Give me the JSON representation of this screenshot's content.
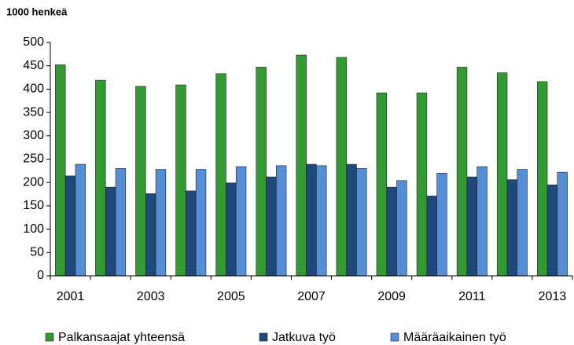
{
  "chart_data": {
    "type": "bar",
    "title": "1000 henkeä",
    "categories": [
      "2001",
      null,
      "2003",
      null,
      "2005",
      null,
      "2007",
      null,
      "2009",
      null,
      "2011",
      null,
      "2013"
    ],
    "series": [
      {
        "name": "Palkansaajat yhteensä",
        "color": "#339933",
        "values": [
          452,
          419,
          406,
          409,
          433,
          447,
          473,
          468,
          392,
          392,
          447,
          435,
          416
        ]
      },
      {
        "name": "Jatkuva työ",
        "color": "#1f497d",
        "values": [
          214,
          190,
          176,
          182,
          199,
          212,
          239,
          239,
          190,
          171,
          212,
          206,
          195
        ]
      },
      {
        "name": "Määräaikainen työ",
        "color": "#558ed5",
        "values": [
          239,
          230,
          228,
          228,
          234,
          236,
          236,
          230,
          204,
          220,
          234,
          228,
          222
        ]
      }
    ],
    "ylim": [
      0,
      500
    ],
    "yticks": [
      0,
      50,
      100,
      150,
      200,
      250,
      300,
      350,
      400,
      450,
      500
    ],
    "grid": false,
    "legend": "bottom"
  }
}
